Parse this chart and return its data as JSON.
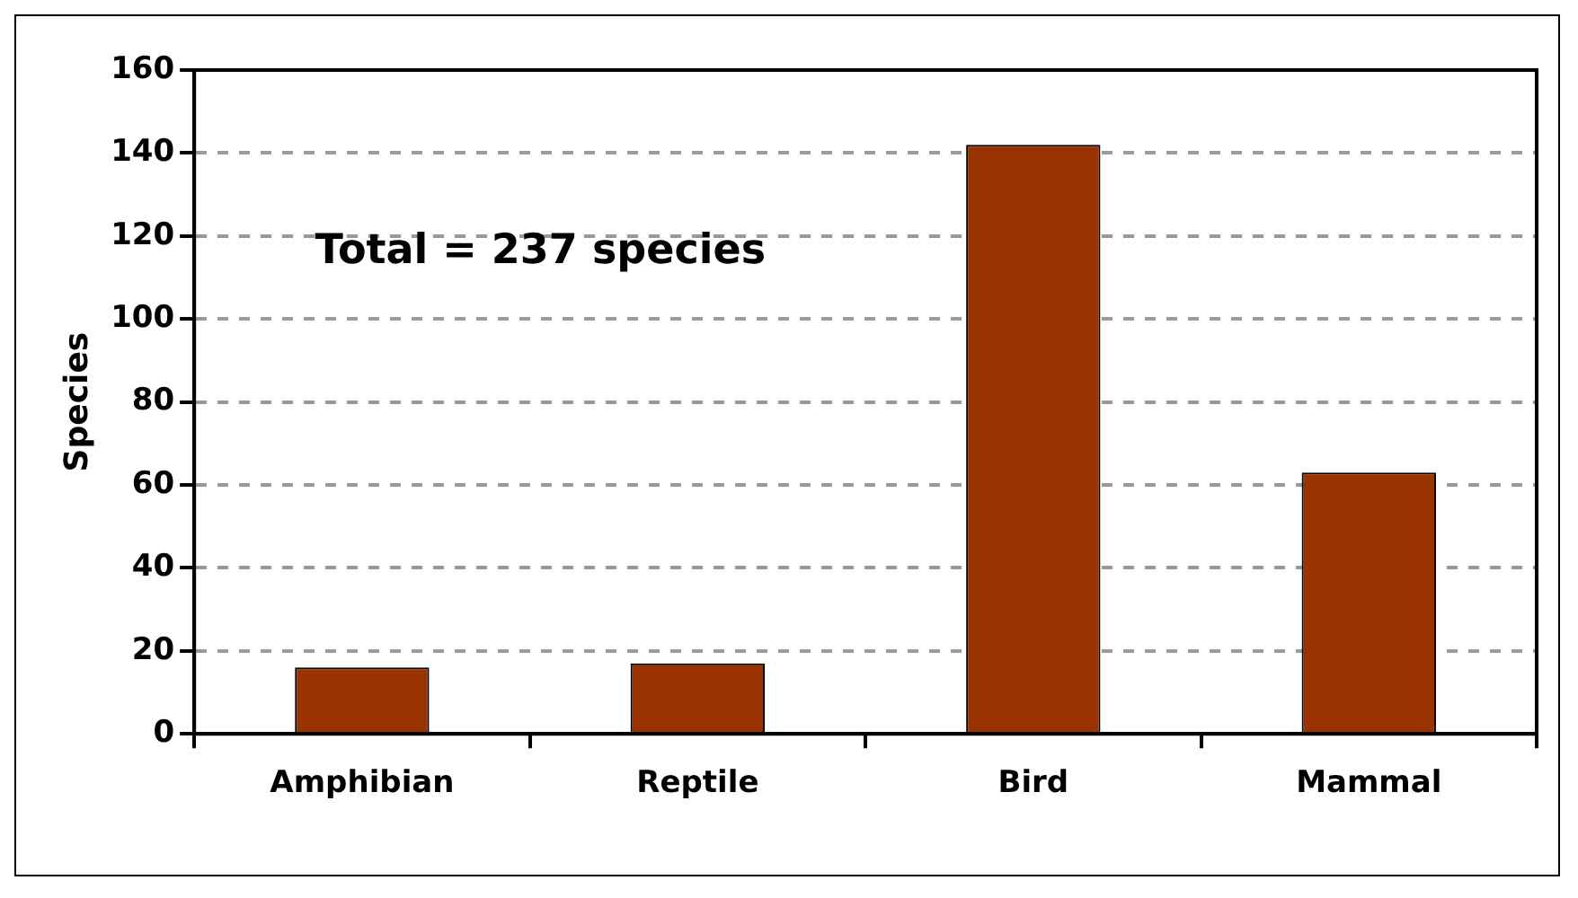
{
  "chart_data": {
    "type": "bar",
    "ylabel": "Species",
    "categories": [
      "Amphibian",
      "Reptile",
      "Bird",
      "Mammal"
    ],
    "values": [
      16,
      17,
      142,
      63
    ],
    "color": "#993300",
    "ylim": [
      0,
      160
    ],
    "yticks": [
      0,
      20,
      40,
      60,
      80,
      100,
      120,
      140,
      160
    ],
    "grid": "y",
    "annotations": [
      "Total = 237 species"
    ]
  }
}
